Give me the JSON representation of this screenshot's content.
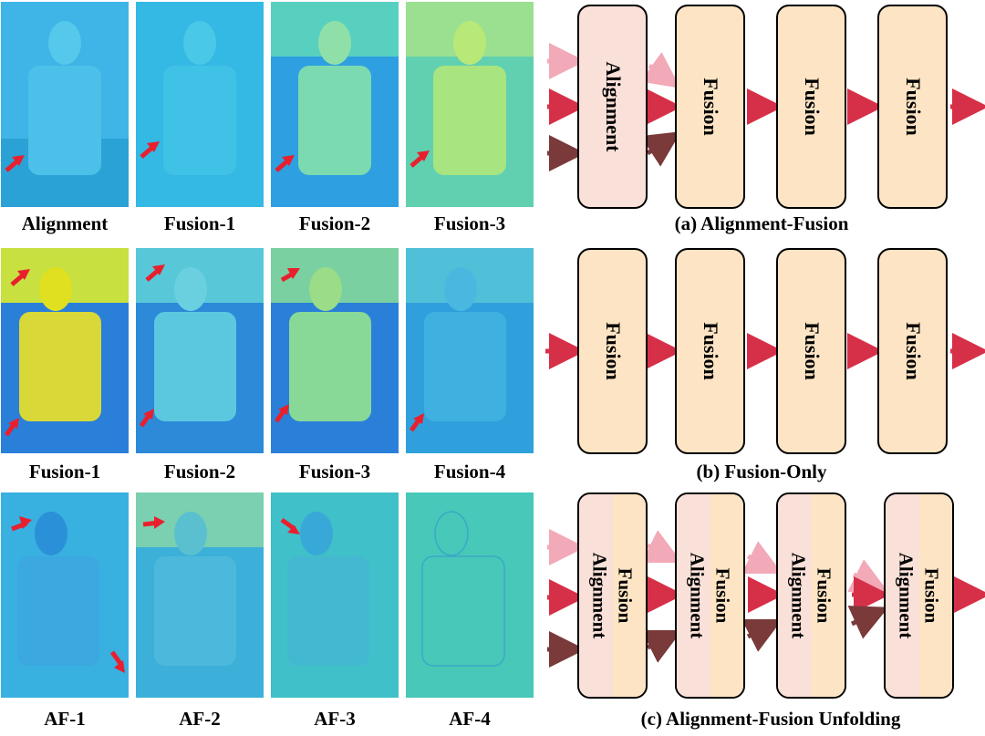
{
  "rows": [
    {
      "thumbs": [
        {
          "label": "Alignment",
          "tone": "cyan"
        },
        {
          "label": "Fusion-1",
          "tone": "cyan"
        },
        {
          "label": "Fusion-2",
          "tone": "mix"
        },
        {
          "label": "Fusion-3",
          "tone": "green"
        }
      ]
    },
    {
      "thumbs": [
        {
          "label": "Fusion-1",
          "tone": "hot"
        },
        {
          "label": "Fusion-2",
          "tone": "cyan"
        },
        {
          "label": "Fusion-3",
          "tone": "mix"
        },
        {
          "label": "Fusion-4",
          "tone": "cyan"
        }
      ]
    },
    {
      "thumbs": [
        {
          "label": "AF-1",
          "tone": "teal"
        },
        {
          "label": "AF-2",
          "tone": "mix"
        },
        {
          "label": "AF-3",
          "tone": "teal"
        },
        {
          "label": "AF-4",
          "tone": "pale"
        }
      ]
    }
  ],
  "diagrams": {
    "a": {
      "caption": "(a) Alignment-Fusion",
      "first": "Alignment",
      "block": "Fusion"
    },
    "b": {
      "caption": "(b) Fusion-Only",
      "block": "Fusion"
    },
    "c": {
      "caption": "(c) Alignment-Fusion Unfolding",
      "left": "Alignment",
      "right": "Fusion"
    }
  },
  "colors": {
    "arrow": "#d63048",
    "arrow_light": "#f2a9b8",
    "arrow_dark": "#7a3a3a",
    "peach": "#fde4c4",
    "pink": "#f9e0d8"
  }
}
